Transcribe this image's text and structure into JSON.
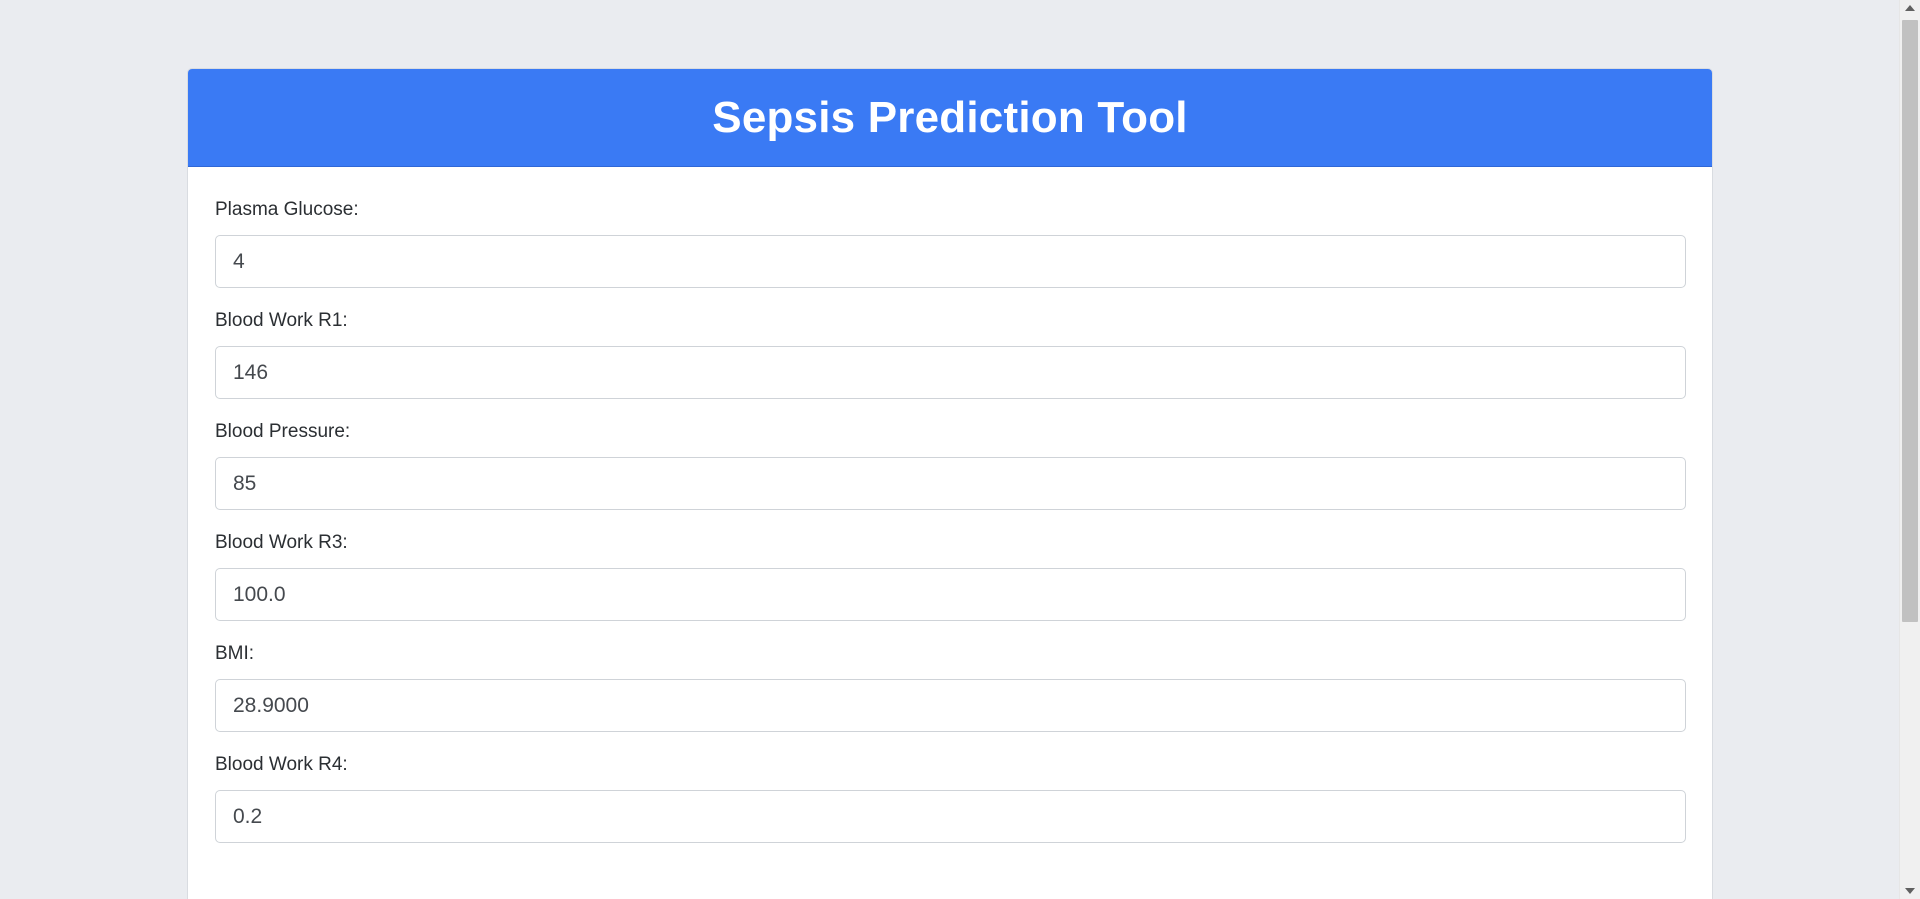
{
  "app": {
    "title": "Sepsis Prediction Tool"
  },
  "form": {
    "fields": [
      {
        "label": "Plasma Glucose:",
        "value": "4"
      },
      {
        "label": "Blood Work R1:",
        "value": "146"
      },
      {
        "label": "Blood Pressure:",
        "value": "85"
      },
      {
        "label": "Blood Work R3:",
        "value": "100.0"
      },
      {
        "label": "BMI:",
        "value": "28.9000"
      },
      {
        "label": "Blood Work R4:",
        "value": "0.2"
      }
    ]
  },
  "colors": {
    "header_background": "#3a7af4",
    "page_background": "#eaecf0",
    "card_background": "#ffffff"
  }
}
